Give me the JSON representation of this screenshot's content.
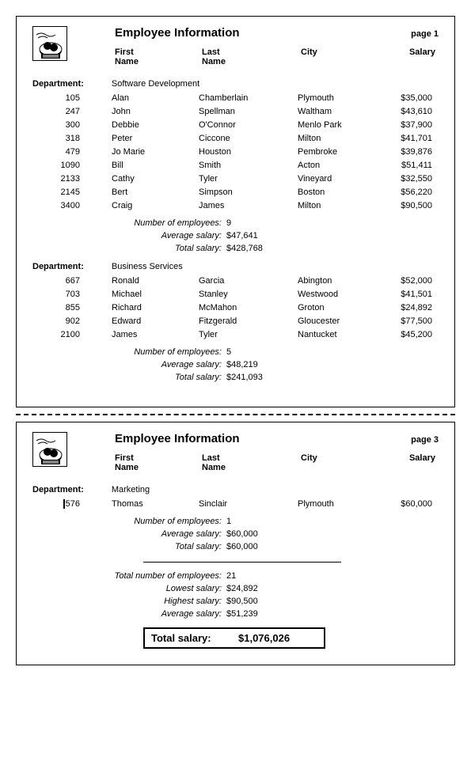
{
  "report": {
    "title": "Employee Information",
    "columns": {
      "first": "First\nName",
      "last": "Last\nName",
      "city": "City",
      "salary": "Salary"
    },
    "dept_label": "Department:",
    "summary_labels": {
      "count": "Number of employees:",
      "avg": "Average salary:",
      "total": "Total salary:"
    },
    "grand_labels": {
      "count": "Total number of employees:",
      "low": "Lowest salary:",
      "high": "Highest salary:",
      "avg": "Average salary:",
      "total": "Total salary:"
    }
  },
  "pages": [
    {
      "page_label": "page 1",
      "departments": [
        {
          "name": "Software Development",
          "rows": [
            {
              "id": "105",
              "first": "Alan",
              "last": "Chamberlain",
              "city": "Plymouth",
              "salary": "$35,000"
            },
            {
              "id": "247",
              "first": "John",
              "last": "Spellman",
              "city": "Waltham",
              "salary": "$43,610"
            },
            {
              "id": "300",
              "first": "Debbie",
              "last": "O'Connor",
              "city": "Menlo Park",
              "salary": "$37,900"
            },
            {
              "id": "318",
              "first": "Peter",
              "last": "Ciccone",
              "city": "Milton",
              "salary": "$41,701"
            },
            {
              "id": "479",
              "first": "Jo Marie",
              "last": "Houston",
              "city": "Pembroke",
              "salary": "$39,876"
            },
            {
              "id": "1090",
              "first": "Bill",
              "last": "Smith",
              "city": "Acton",
              "salary": "$51,411"
            },
            {
              "id": "2133",
              "first": "Cathy",
              "last": "Tyler",
              "city": "Vineyard",
              "salary": "$32,550"
            },
            {
              "id": "2145",
              "first": "Bert",
              "last": "Simpson",
              "city": "Boston",
              "salary": "$56,220"
            },
            {
              "id": "3400",
              "first": "Craig",
              "last": "James",
              "city": "Milton",
              "salary": "$90,500"
            }
          ],
          "summary": {
            "count": "9",
            "avg": "$47,641",
            "total": "$428,768"
          }
        },
        {
          "name": "Business Services",
          "rows": [
            {
              "id": "667",
              "first": "Ronald",
              "last": "Garcia",
              "city": "Abington",
              "salary": "$52,000"
            },
            {
              "id": "703",
              "first": "Michael",
              "last": "Stanley",
              "city": "Westwood",
              "salary": "$41,501"
            },
            {
              "id": "855",
              "first": "Richard",
              "last": "McMahon",
              "city": "Groton",
              "salary": "$24,892"
            },
            {
              "id": "902",
              "first": "Edward",
              "last": "Fitzgerald",
              "city": "Gloucester",
              "salary": "$77,500"
            },
            {
              "id": "2100",
              "first": "James",
              "last": "Tyler",
              "city": "Nantucket",
              "salary": "$45,200"
            }
          ],
          "summary": {
            "count": "5",
            "avg": "$48,219",
            "total": "$241,093"
          }
        }
      ]
    },
    {
      "page_label": "page 3",
      "departments": [
        {
          "name": "Marketing",
          "rows": [
            {
              "id": "576",
              "first": "Thomas",
              "last": "Sinclair",
              "city": "Plymouth",
              "salary": "$60,000",
              "cursor": true
            }
          ],
          "summary": {
            "count": "1",
            "avg": "$60,000",
            "total": "$60,000"
          }
        }
      ],
      "grand": {
        "count": "21",
        "low": "$24,892",
        "high": "$90,500",
        "avg": "$51,239",
        "total": "$1,076,026"
      }
    }
  ]
}
